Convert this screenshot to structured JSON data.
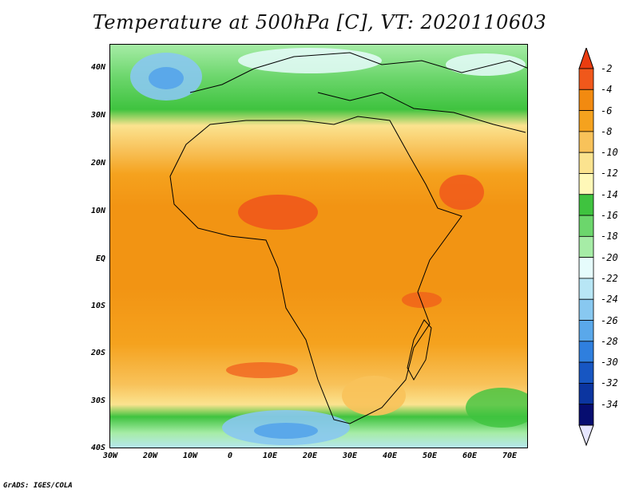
{
  "title": "Temperature at 500hPa [C], VT: 2020110603",
  "footer": "GrADS: IGES/COLA",
  "y_labels": [
    "40N",
    "30N",
    "20N",
    "10N",
    "EQ",
    "10S",
    "20S",
    "30S",
    "40S"
  ],
  "x_labels": [
    "30W",
    "20W",
    "10W",
    "0",
    "10E",
    "20E",
    "30E",
    "40E",
    "50E",
    "60E",
    "70E"
  ],
  "colorbar": {
    "labels": [
      "-2",
      "-4",
      "-6",
      "-8",
      "-10",
      "-12",
      "-14",
      "-16",
      "-18",
      "-20",
      "-22",
      "-24",
      "-26",
      "-28",
      "-30",
      "-32",
      "-34"
    ],
    "colors": [
      "#f0581b",
      "#f28a10",
      "#f5a21e",
      "#f8c25a",
      "#fbe38f",
      "#fff8b8",
      "#3fc33f",
      "#6cd66c",
      "#a6eca6",
      "#e6fcfc",
      "#b8e6f5",
      "#88c8f0",
      "#5aa8ea",
      "#2f7fde",
      "#1756c2",
      "#0b35a0",
      "#060d70"
    ],
    "top_color": "#ea3c10",
    "bottom_color": "#e6e6ff"
  }
}
